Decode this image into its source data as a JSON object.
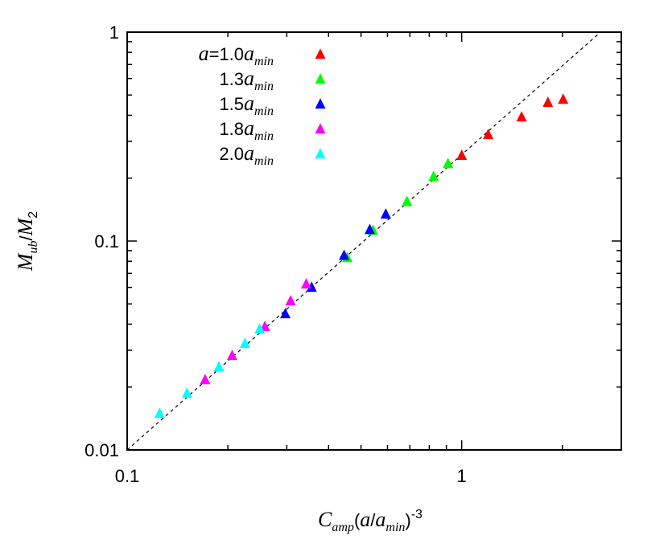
{
  "chart_data": {
    "type": "scatter",
    "xlabel": "C_{amp}(a/a_{min})^{-3}",
    "ylabel": "M_{ub}/M_{2}",
    "xlim": [
      0.1,
      3
    ],
    "ylim": [
      0.01,
      1
    ],
    "xticks": [
      0.1,
      1
    ],
    "yticks": [
      0.01,
      0.1,
      1
    ],
    "xminor_ticks": [
      0.2,
      0.3,
      0.4,
      0.5,
      0.6,
      0.7,
      0.8,
      0.9,
      2,
      3
    ],
    "yminor_ticks": [
      0.02,
      0.03,
      0.04,
      0.05,
      0.06,
      0.07,
      0.08,
      0.09,
      0.2,
      0.3,
      0.4,
      0.5,
      0.6,
      0.7,
      0.8,
      0.9
    ],
    "log_x": true,
    "log_y": true,
    "legend": "top-left",
    "reference_line": {
      "x": [
        0.1,
        2.6
      ],
      "y": [
        0.01,
        1
      ],
      "color": "#000000",
      "dashed": true
    },
    "series": [
      {
        "name": "a=1.0a_{min}",
        "color": "#ff0000",
        "x": [
          1.0,
          1.2,
          1.51,
          1.81,
          2.01
        ],
        "values": [
          0.256,
          0.322,
          0.391,
          0.459,
          0.475
        ]
      },
      {
        "name": "1.3a_{min}",
        "color": "#00ff00",
        "x": [
          0.455,
          0.543,
          0.686,
          0.824,
          0.91
        ],
        "values": [
          0.083,
          0.112,
          0.154,
          0.203,
          0.234
        ]
      },
      {
        "name": "1.5a_{min}",
        "color": "#0000ff",
        "x": [
          0.297,
          0.356,
          0.445,
          0.531,
          0.593
        ],
        "values": [
          0.0447,
          0.0598,
          0.085,
          0.113,
          0.134
        ]
      },
      {
        "name": "1.8a_{min}",
        "color": "#ff00ff",
        "x": [
          0.171,
          0.206,
          0.258,
          0.308,
          0.343
        ],
        "values": [
          0.0216,
          0.0282,
          0.0388,
          0.0515,
          0.062
        ]
      },
      {
        "name": "2.0a_{min}",
        "color": "#00ffff",
        "x": [
          0.125,
          0.151,
          0.188,
          0.225,
          0.249
        ],
        "values": [
          0.0149,
          0.0186,
          0.0249,
          0.0322,
          0.0378
        ]
      }
    ]
  }
}
